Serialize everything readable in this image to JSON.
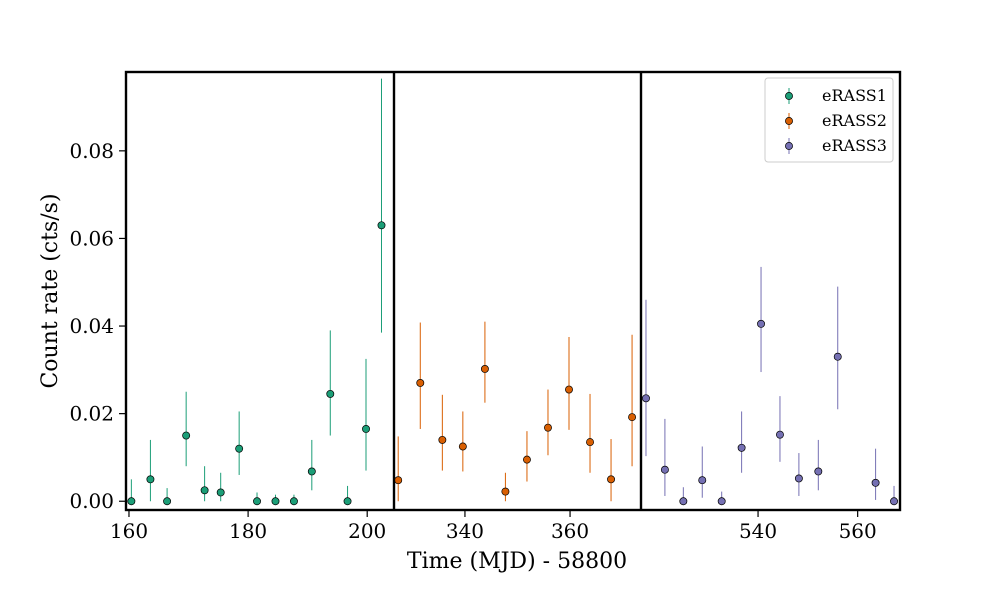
{
  "chart_data": {
    "type": "scatter",
    "xlabel": "Time (MJD) - 58800",
    "ylabel": "Count rate (cts/s)",
    "ylim": [
      -0.002,
      0.098
    ],
    "y_ticks": [
      0.0,
      0.02,
      0.04,
      0.06,
      0.08
    ],
    "y_tick_labels": [
      "0.00",
      "0.02",
      "0.04",
      "0.06",
      "0.08"
    ],
    "grid": false,
    "legend_position": "top-right",
    "panels": [
      {
        "name": "eRASS1",
        "xlim": [
          159.5,
          204.5
        ],
        "x_ticks": [
          160,
          180,
          200
        ],
        "x_tick_labels": [
          "160",
          "180",
          "200"
        ],
        "series_index": 0
      },
      {
        "name": "eRASS2",
        "xlim": [
          326.5,
          373.5
        ],
        "x_ticks": [
          340,
          360
        ],
        "x_tick_labels": [
          "340",
          "360"
        ],
        "series_index": 1
      },
      {
        "name": "eRASS3",
        "xlim": [
          516.5,
          568.5
        ],
        "x_ticks": [
          540,
          560
        ],
        "x_tick_labels": [
          "540",
          "560"
        ],
        "series_index": 2
      }
    ],
    "series": [
      {
        "name": "eRASS1",
        "color": "#1b9e77",
        "points": [
          {
            "x": 160.4,
            "y": 0.0,
            "err_low": 0.0,
            "err_high": 0.005
          },
          {
            "x": 163.6,
            "y": 0.005,
            "err_low": 0.0,
            "err_high": 0.014
          },
          {
            "x": 166.4,
            "y": 0.0,
            "err_low": 0.0,
            "err_high": 0.003
          },
          {
            "x": 169.6,
            "y": 0.015,
            "err_low": 0.008,
            "err_high": 0.025
          },
          {
            "x": 172.7,
            "y": 0.0025,
            "err_low": 0.0,
            "err_high": 0.008
          },
          {
            "x": 175.4,
            "y": 0.002,
            "err_low": 0.0,
            "err_high": 0.0065
          },
          {
            "x": 178.5,
            "y": 0.012,
            "err_low": 0.006,
            "err_high": 0.0205
          },
          {
            "x": 181.5,
            "y": 0.0,
            "err_low": 0.0,
            "err_high": 0.002
          },
          {
            "x": 184.6,
            "y": 0.0,
            "err_low": 0.0,
            "err_high": 0.0015
          },
          {
            "x": 187.7,
            "y": 0.0,
            "err_low": 0.0,
            "err_high": 0.0015
          },
          {
            "x": 190.7,
            "y": 0.0068,
            "err_low": 0.0025,
            "err_high": 0.014
          },
          {
            "x": 193.8,
            "y": 0.0245,
            "err_low": 0.015,
            "err_high": 0.039
          },
          {
            "x": 196.7,
            "y": 0.0,
            "err_low": 0.0,
            "err_high": 0.0035
          },
          {
            "x": 199.8,
            "y": 0.0165,
            "err_low": 0.007,
            "err_high": 0.0325
          },
          {
            "x": 202.4,
            "y": 0.063,
            "err_low": 0.0385,
            "err_high": 0.0965
          }
        ]
      },
      {
        "name": "eRASS2",
        "color": "#d95f02",
        "points": [
          {
            "x": 327.3,
            "y": 0.0048,
            "err_low": 0.0,
            "err_high": 0.0148
          },
          {
            "x": 331.5,
            "y": 0.027,
            "err_low": 0.0165,
            "err_high": 0.0408
          },
          {
            "x": 335.7,
            "y": 0.014,
            "err_low": 0.007,
            "err_high": 0.0243
          },
          {
            "x": 339.6,
            "y": 0.0125,
            "err_low": 0.0068,
            "err_high": 0.0205
          },
          {
            "x": 343.8,
            "y": 0.0302,
            "err_low": 0.0225,
            "err_high": 0.041
          },
          {
            "x": 347.7,
            "y": 0.0022,
            "err_low": 0.0,
            "err_high": 0.0065
          },
          {
            "x": 351.8,
            "y": 0.0095,
            "err_low": 0.0045,
            "err_high": 0.016
          },
          {
            "x": 355.8,
            "y": 0.0168,
            "err_low": 0.0105,
            "err_high": 0.0255
          },
          {
            "x": 359.8,
            "y": 0.0255,
            "err_low": 0.0163,
            "err_high": 0.0375
          },
          {
            "x": 363.8,
            "y": 0.0135,
            "err_low": 0.0065,
            "err_high": 0.0245
          },
          {
            "x": 367.8,
            "y": 0.005,
            "err_low": 0.0,
            "err_high": 0.0142
          },
          {
            "x": 371.8,
            "y": 0.0192,
            "err_low": 0.008,
            "err_high": 0.038
          }
        ]
      },
      {
        "name": "eRASS3",
        "color": "#7570b3",
        "points": [
          {
            "x": 517.5,
            "y": 0.0235,
            "err_low": 0.0103,
            "err_high": 0.046
          },
          {
            "x": 521.3,
            "y": 0.0072,
            "err_low": 0.0012,
            "err_high": 0.0188
          },
          {
            "x": 525.0,
            "y": 0.0,
            "err_low": 0.0,
            "err_high": 0.0032
          },
          {
            "x": 528.8,
            "y": 0.0048,
            "err_low": 0.0008,
            "err_high": 0.0125
          },
          {
            "x": 532.7,
            "y": 0.0,
            "err_low": 0.0,
            "err_high": 0.0022
          },
          {
            "x": 536.7,
            "y": 0.0122,
            "err_low": 0.0065,
            "err_high": 0.0205
          },
          {
            "x": 540.6,
            "y": 0.0405,
            "err_low": 0.0295,
            "err_high": 0.0535
          },
          {
            "x": 544.4,
            "y": 0.0152,
            "err_low": 0.009,
            "err_high": 0.024
          },
          {
            "x": 548.2,
            "y": 0.0052,
            "err_low": 0.0012,
            "err_high": 0.011
          },
          {
            "x": 552.1,
            "y": 0.0068,
            "err_low": 0.0025,
            "err_high": 0.014
          },
          {
            "x": 556.0,
            "y": 0.033,
            "err_low": 0.021,
            "err_high": 0.049
          },
          {
            "x": 563.6,
            "y": 0.0042,
            "err_low": 0.0003,
            "err_high": 0.012
          },
          {
            "x": 567.3,
            "y": 0.0,
            "err_low": 0.0,
            "err_high": 0.0035
          }
        ]
      }
    ]
  }
}
